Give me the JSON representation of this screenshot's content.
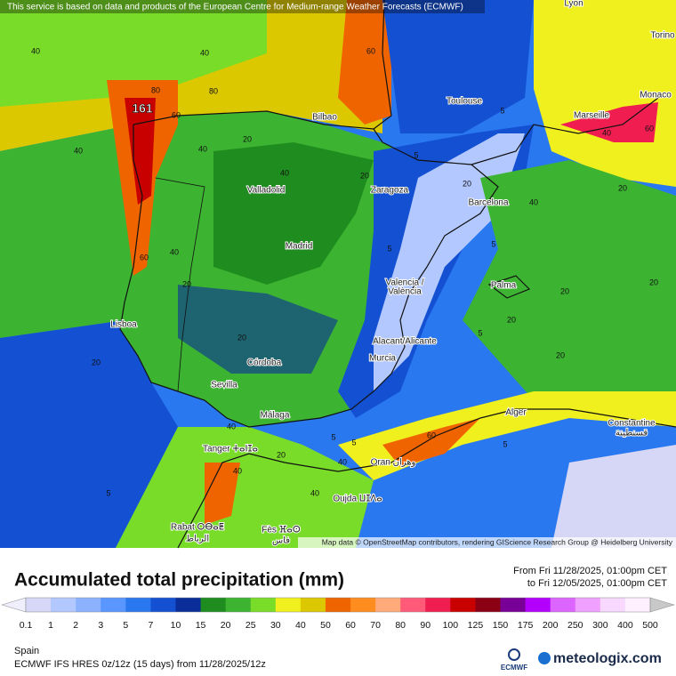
{
  "attribution": "This service is based on data and products of the European Centre for Medium-range Weather Forecasts (ECMWF)",
  "map_credit": "Map data © OpenStreetMap contributors, rendering GIScience Research Group @ Heidelberg University",
  "max_label": "161",
  "cities": [
    "Lyon",
    "Torino",
    "Monaco",
    "Toulouse",
    "Marseille",
    "Bilbao",
    "Valladolid",
    "Zaragoza",
    "Barcelona",
    "Madrid",
    "Valencia /",
    "València",
    "Palma",
    "Lisboa",
    "Alacant/Alicante",
    "Murcia",
    "Córdoba",
    "Sevilla",
    "Alger",
    "Málaga",
    "Constantine",
    "قسنطينة",
    "Tanger ⵜⴰⵏⵊⴰ",
    "Oran وهران",
    "Oujda ⵡⵊⴷⴰ",
    "Rabat ⵔⴱⴰⵟ",
    "الرباط",
    "Fès ⴼⴰⵙ",
    "فاس"
  ],
  "contour_labels": [
    "40",
    "40",
    "60",
    "80",
    "80",
    "60",
    "40",
    "20",
    "40",
    "40",
    "20",
    "60",
    "40",
    "20",
    "20",
    "5",
    "5",
    "20",
    "20",
    "20",
    "5",
    "5",
    "20",
    "5",
    "40",
    "60",
    "40",
    "20",
    "40",
    "40",
    "20",
    "20",
    "5",
    "5",
    "20",
    "60",
    "40",
    "40",
    "5",
    "5"
  ],
  "title": "Accumulated total precipitation (mm)",
  "period_from": "From Fri 11/28/2025, 01:00pm CET",
  "period_to": "to Fri 12/05/2025, 01:00pm CET",
  "legend": {
    "values": [
      0.1,
      1,
      2,
      3,
      5,
      7,
      10,
      15,
      20,
      25,
      30,
      40,
      50,
      60,
      70,
      80,
      90,
      100,
      125,
      150,
      175,
      200,
      250,
      300,
      400,
      500
    ],
    "below_color": "#eeeefc",
    "colors": [
      "#d6d6f6",
      "#b2c8ff",
      "#8cb2ff",
      "#5a96ff",
      "#2a78f0",
      "#1450d2",
      "#0a2d9a",
      "#1e8c1e",
      "#3cb432",
      "#78dc28",
      "#f0f01e",
      "#dcc800",
      "#f06400",
      "#ff8c1e",
      "#ffaa78",
      "#ff5a78",
      "#f01e50",
      "#c80000",
      "#8c0014",
      "#780096",
      "#b400ff",
      "#dc64ff",
      "#f0a0ff",
      "#f8d8ff",
      "#fff0ff"
    ],
    "above_color": "#c8c8c8"
  },
  "region": "Spain",
  "model": "ECMWF IFS HRES 0z/12z (15 days) from  11/28/2025/12z",
  "ecmwf_logo": "ECMWF",
  "brand": "meteologix.com"
}
